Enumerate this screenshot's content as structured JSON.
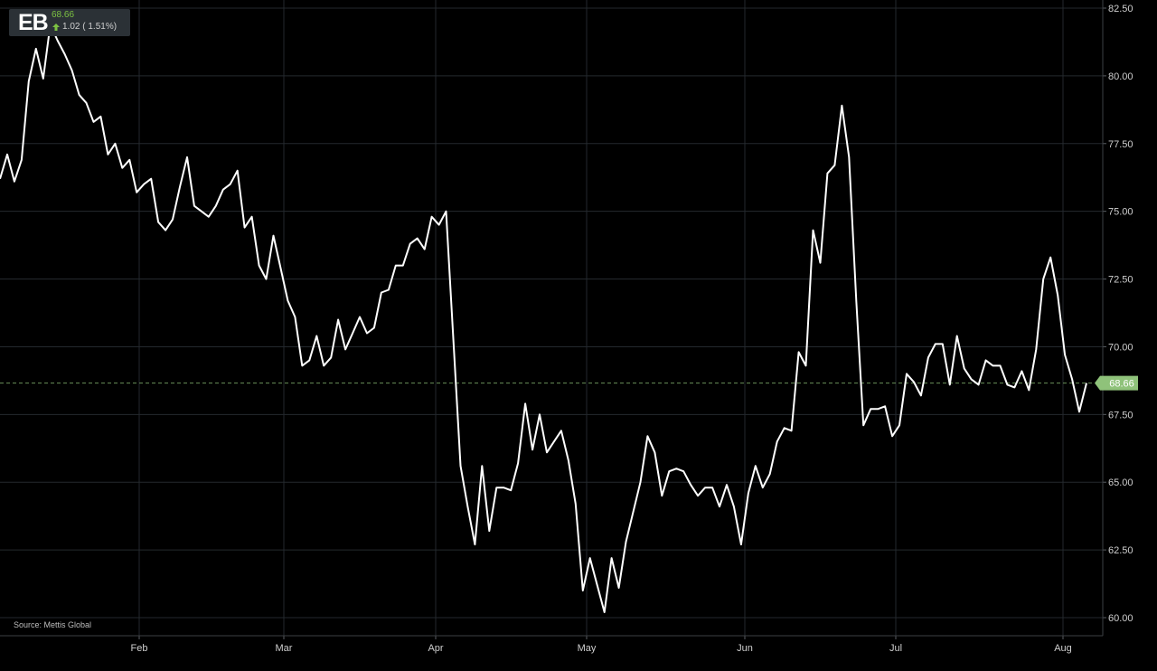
{
  "ticker": {
    "symbol": "EB",
    "price": "68.66",
    "change": "1.02 ( 1.51%)",
    "up_color": "#7cc242"
  },
  "source": "Source: Mettis Global",
  "chart_data": {
    "type": "line",
    "title": "",
    "xlabel": "",
    "ylabel": "",
    "x_tick_labels": [
      "Feb",
      "Mar",
      "Apr",
      "May",
      "Jun",
      "Jul",
      "Aug"
    ],
    "y_tick_labels": [
      "82.50",
      "80.00",
      "77.50",
      "75.00",
      "72.50",
      "70.00",
      "67.50",
      "65.00",
      "62.50",
      "60.00"
    ],
    "ylim": [
      60,
      82.5
    ],
    "grid": true,
    "last_price_label": "68.66",
    "last_price": 68.66,
    "line_color": "#ffffff",
    "series": [
      {
        "values": [
          76.2,
          77.1,
          76.1,
          76.9,
          79.8,
          81.0,
          79.9,
          81.9,
          81.3,
          80.8,
          80.2,
          79.3,
          79.0,
          78.3,
          78.5,
          77.1,
          77.5,
          76.6,
          76.9,
          75.7,
          76.0,
          76.2,
          74.6,
          74.3,
          74.7,
          75.9,
          77.0,
          75.2,
          75.0,
          74.8,
          75.2,
          75.8,
          76.0,
          76.5,
          74.4,
          74.8,
          73.0,
          72.5,
          74.1,
          72.9,
          71.7,
          71.1,
          69.3,
          69.5,
          70.4,
          69.3,
          69.6,
          71.0,
          69.9,
          70.5,
          71.1,
          70.5,
          70.7,
          72.0,
          72.1,
          73.0,
          73.0,
          73.8,
          74.0,
          73.6,
          74.8,
          74.5,
          75.0,
          70.3,
          65.6,
          64.1,
          62.7,
          65.6,
          63.2,
          64.8,
          64.8,
          64.7,
          65.7,
          67.9,
          66.2,
          67.5,
          66.1,
          66.5,
          66.9,
          65.8,
          64.2,
          61.0,
          62.2,
          61.2,
          60.2,
          62.2,
          61.1,
          62.8,
          63.9,
          65.0,
          66.7,
          66.1,
          64.5,
          65.4,
          65.5,
          65.4,
          64.9,
          64.5,
          64.8,
          64.8,
          64.1,
          64.9,
          64.1,
          62.7,
          64.6,
          65.6,
          64.8,
          65.3,
          66.5,
          67.0,
          66.9,
          69.8,
          69.3,
          74.3,
          73.1,
          76.4,
          76.7,
          78.9,
          77.0,
          71.7,
          67.1,
          67.7,
          67.7,
          67.8,
          66.7,
          67.1,
          69.0,
          68.7,
          68.2,
          69.6,
          70.1,
          70.1,
          68.6,
          70.4,
          69.2,
          68.8,
          68.6,
          69.5,
          69.3,
          69.3,
          68.6,
          68.5,
          69.1,
          68.4,
          69.9,
          72.5,
          73.3,
          71.9,
          69.7,
          68.8,
          67.6,
          68.66
        ]
      }
    ]
  }
}
